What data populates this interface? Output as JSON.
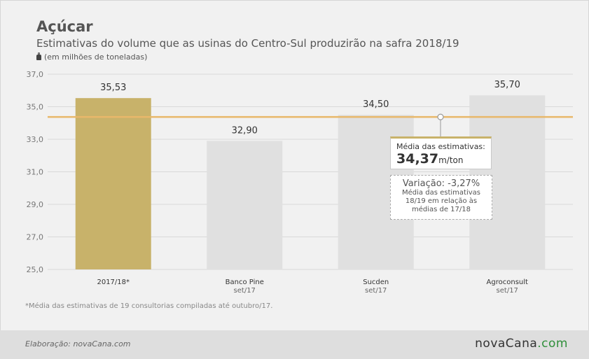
{
  "header": {
    "title": "Açúcar",
    "subtitle": "Estimativas do volume que as usinas do Centro-Sul produzirão na safra 2018/19",
    "unit": "(em milhões de toneladas)"
  },
  "chart_data": {
    "type": "bar",
    "categories": [
      "2017/18*",
      "Banco Pine",
      "Sucden",
      "Agroconsult"
    ],
    "category_sublabels": [
      "",
      "set/17",
      "set/17",
      "set/17"
    ],
    "values": [
      35.53,
      32.9,
      34.5,
      35.7
    ],
    "value_labels": [
      "35,53",
      "32,90",
      "34,50",
      "35,70"
    ],
    "yticks": [
      "37,0",
      "35,0",
      "33,0",
      "31,0",
      "29,0",
      "27,0",
      "25,0"
    ],
    "ytick_values": [
      37,
      35,
      33,
      31,
      29,
      27,
      25
    ],
    "ylim": [
      25,
      37
    ],
    "grid": true,
    "highlight_color": "#c8b26a",
    "bar_color": "#e0e0e0",
    "reference_line": {
      "value": 34.37,
      "color": "#e8b86a"
    }
  },
  "annotations": {
    "average_label": "Média das estimativas:",
    "average_value": "34,37",
    "average_unit": "m/ton",
    "variation_title": "Variação: -3,27%",
    "variation_text": "Média das estimativas 18/19 em relação às médias de 17/18"
  },
  "footnote": "*Média das estimativas de 19 consultorias compiladas até outubro/17.",
  "footer": {
    "credit": "Elaboração: novaCana.com",
    "logo_main": "novaCana",
    "logo_suffix": ".com",
    "logo_accent": "#2f8f3a"
  }
}
